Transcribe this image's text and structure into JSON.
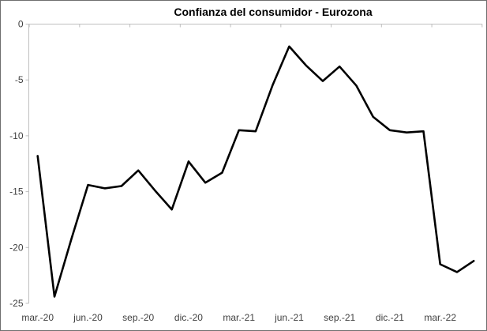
{
  "chart_data": {
    "type": "line",
    "title": "Confianza del consumidor - Eurozona",
    "x": [
      "mar.-20",
      "abr.-20",
      "may.-20",
      "jun.-20",
      "jul.-20",
      "ago.-20",
      "sep.-20",
      "oct.-20",
      "nov.-20",
      "dic.-20",
      "ene.-21",
      "feb.-21",
      "mar.-21",
      "abr.-21",
      "may.-21",
      "jun.-21",
      "jul.-21",
      "ago.-21",
      "sep.-21",
      "oct.-21",
      "nov.-21",
      "dic.-21",
      "ene.-22",
      "feb.-22",
      "mar.-22",
      "abr.-22",
      "may.-22"
    ],
    "series": [
      {
        "name": "Confianza del consumidor",
        "values": [
          -11.8,
          -24.4,
          -19.3,
          -14.4,
          -14.7,
          -14.5,
          -13.1,
          -14.9,
          -16.6,
          -12.3,
          -14.2,
          -13.3,
          -9.5,
          -9.6,
          -5.5,
          -2.0,
          -3.7,
          -5.1,
          -3.8,
          -5.5,
          -8.3,
          -9.5,
          -9.7,
          -9.6,
          -21.5,
          -22.2,
          -21.2
        ]
      }
    ],
    "x_tick_labels": [
      "mar.-20",
      "jun.-20",
      "sep.-20",
      "dic.-20",
      "mar.-21",
      "jun.-21",
      "sep.-21",
      "dic.-21",
      "mar.-22"
    ],
    "x_tick_every": 3,
    "y_ticks": [
      0,
      -5,
      -10,
      -15,
      -20,
      -25
    ],
    "ylim": [
      -25,
      0
    ],
    "grid": false,
    "legend": "none",
    "xlabel": "",
    "ylabel": ""
  },
  "colors": {
    "series_line": "#000000",
    "axis_line": "#bfbfbf",
    "tick_label": "#404040",
    "title": "#000000",
    "background": "#ffffff",
    "frame_border": "#6e6e6e"
  }
}
